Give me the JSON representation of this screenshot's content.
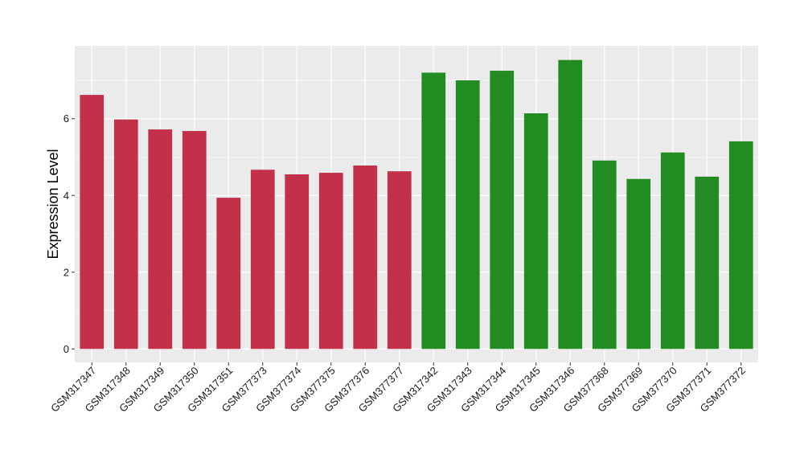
{
  "chart_data": {
    "type": "bar",
    "title": "",
    "xlabel": "",
    "ylabel": "Expression Level",
    "ylim": [
      -0.35,
      7.9
    ],
    "yticks": [
      0,
      2,
      4,
      6
    ],
    "grid": true,
    "legend": "none",
    "categories": [
      "GSM317347",
      "GSM317348",
      "GSM317349",
      "GSM317350",
      "GSM317351",
      "GSM377373",
      "GSM377374",
      "GSM377375",
      "GSM377376",
      "GSM377377",
      "GSM317342",
      "GSM317343",
      "GSM317344",
      "GSM317345",
      "GSM317346",
      "GSM377368",
      "GSM377369",
      "GSM377370",
      "GSM377371",
      "GSM377372"
    ],
    "values": [
      6.62,
      5.98,
      5.72,
      5.68,
      3.94,
      4.67,
      4.55,
      4.59,
      4.78,
      4.63,
      7.2,
      7.0,
      7.25,
      6.14,
      7.53,
      4.91,
      4.43,
      5.12,
      4.49,
      5.41
    ],
    "bar_colors": [
      "#C3304A",
      "#C3304A",
      "#C3304A",
      "#C3304A",
      "#C3304A",
      "#C3304A",
      "#C3304A",
      "#C3304A",
      "#C3304A",
      "#C3304A",
      "#228B22",
      "#228B22",
      "#228B22",
      "#228B22",
      "#228B22",
      "#228B22",
      "#228B22",
      "#228B22",
      "#228B22",
      "#228B22"
    ]
  },
  "colors": {
    "panel_background": "#EBEBEB",
    "grid": "#FFFFFF",
    "group_a": "#C3304A",
    "group_b": "#228B22"
  }
}
